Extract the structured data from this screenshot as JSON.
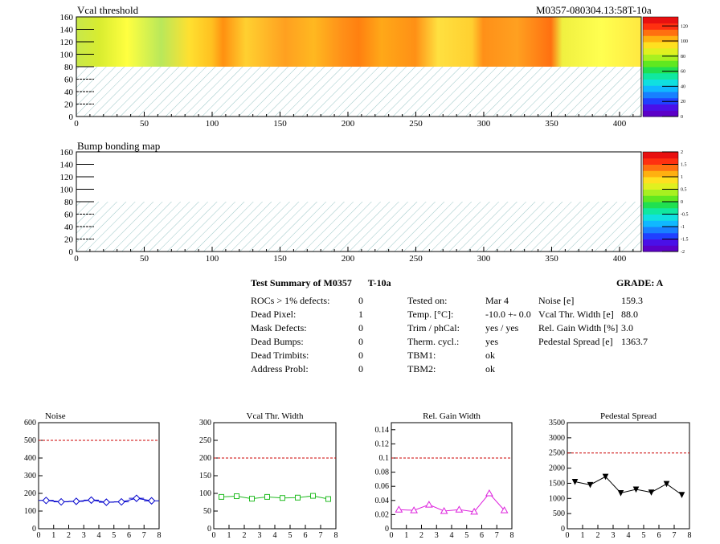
{
  "maps": [
    {
      "title": "Vcal threshold",
      "right_title": "M0357-080304.13:58T-10a",
      "x_ticks": [
        "0",
        "50",
        "100",
        "150",
        "200",
        "250",
        "300",
        "350",
        "400"
      ],
      "y_ticks": [
        "0",
        "20",
        "40",
        "60",
        "80",
        "100",
        "120",
        "140",
        "160"
      ],
      "z_ticks": [
        "0",
        "20",
        "40",
        "60",
        "80",
        "100",
        "120"
      ],
      "has_data": true
    },
    {
      "title": "Bump bonding map",
      "right_title": "",
      "x_ticks": [
        "0",
        "50",
        "100",
        "150",
        "200",
        "250",
        "300",
        "350",
        "400"
      ],
      "y_ticks": [
        "0",
        "20",
        "40",
        "60",
        "80",
        "100",
        "120",
        "140",
        "160"
      ],
      "z_ticks": [
        "-2",
        "-1.5",
        "-1",
        "-0.5",
        "0",
        "0.5",
        "1",
        "1.5",
        "2"
      ],
      "has_data": false
    }
  ],
  "summary": {
    "title": "Test Summary of M0357",
    "temp_tag": "T-10a",
    "grade_label": "GRADE:  A",
    "col1": [
      {
        "label": "ROCs > 1% defects:",
        "value": "0"
      },
      {
        "label": "Dead Pixel:",
        "value": "1"
      },
      {
        "label": "Mask Defects:",
        "value": "0"
      },
      {
        "label": "Dead Bumps:",
        "value": "0"
      },
      {
        "label": "Dead Trimbits:",
        "value": "0"
      },
      {
        "label": "Address Probl:",
        "value": "0"
      }
    ],
    "col2": [
      {
        "label": "Tested on:",
        "value": "Mar 4"
      },
      {
        "label": "Temp. [°C]:",
        "value": "-10.0 +- 0.0"
      },
      {
        "label": "Trim / phCal:",
        "value": "yes / yes"
      },
      {
        "label": "Therm. cycl.:",
        "value": "yes"
      },
      {
        "label": "TBM1:",
        "value": "ok"
      },
      {
        "label": "TBM2:",
        "value": "ok"
      }
    ],
    "col3": [
      {
        "label": "Noise [e]",
        "value": "159.3"
      },
      {
        "label": "Vcal Thr. Width [e]",
        "value": "88.0"
      },
      {
        "label": "Rel. Gain Width [%]",
        "value": "3.0"
      },
      {
        "label": "Pedestal Spread [e]",
        "value": "1363.7"
      }
    ]
  },
  "chart_data": [
    {
      "type": "line",
      "title": "Noise",
      "color": "#0000cc",
      "marker": "diamond",
      "x": [
        0.5,
        1.5,
        2.5,
        3.5,
        4.5,
        5.5,
        6.5,
        7.5
      ],
      "values": [
        160,
        152,
        155,
        162,
        150,
        152,
        172,
        158
      ],
      "errors": [
        15,
        15,
        15,
        15,
        15,
        15,
        15,
        15
      ],
      "xlim": [
        0,
        8
      ],
      "ylim": [
        0,
        600
      ],
      "threshold": 500,
      "x_ticks": [
        "0",
        "1",
        "2",
        "3",
        "4",
        "5",
        "6",
        "7",
        "8"
      ],
      "y_ticks": [
        "0",
        "100",
        "200",
        "300",
        "400",
        "500",
        "600"
      ],
      "y_tick_values": [
        0,
        100,
        200,
        300,
        400,
        500,
        600
      ]
    },
    {
      "type": "line",
      "title": "Vcal Thr. Width",
      "color": "#22bb22",
      "marker": "square",
      "x": [
        0.5,
        1.5,
        2.5,
        3.5,
        4.5,
        5.5,
        6.5,
        7.5
      ],
      "values": [
        90,
        92,
        85,
        90,
        87,
        88,
        93,
        84
      ],
      "xlim": [
        0,
        8
      ],
      "ylim": [
        0,
        300
      ],
      "threshold": 200,
      "x_ticks": [
        "0",
        "1",
        "2",
        "3",
        "4",
        "5",
        "6",
        "7",
        "8"
      ],
      "y_ticks": [
        "0",
        "50",
        "100",
        "150",
        "200",
        "250",
        "300"
      ],
      "y_tick_values": [
        0,
        50,
        100,
        150,
        200,
        250,
        300
      ]
    },
    {
      "type": "line",
      "title": "Rel. Gain Width",
      "color": "#dd22dd",
      "marker": "triangle",
      "x": [
        0.5,
        1.5,
        2.5,
        3.5,
        4.5,
        5.5,
        6.5,
        7.5
      ],
      "values": [
        0.027,
        0.026,
        0.034,
        0.025,
        0.027,
        0.024,
        0.05,
        0.026
      ],
      "xlim": [
        0,
        8
      ],
      "ylim": [
        0,
        0.15
      ],
      "threshold": 0.1,
      "x_ticks": [
        "0",
        "1",
        "2",
        "3",
        "4",
        "5",
        "6",
        "7",
        "8"
      ],
      "y_ticks": [
        "0",
        "0.02",
        "0.04",
        "0.06",
        "0.08",
        "0.1",
        "0.12",
        "0.14"
      ],
      "y_tick_values": [
        0,
        0.02,
        0.04,
        0.06,
        0.08,
        0.1,
        0.12,
        0.14
      ]
    },
    {
      "type": "line",
      "title": "Pedestal Spread",
      "color": "#000000",
      "marker": "triangle-down",
      "x": [
        0.5,
        1.5,
        2.5,
        3.5,
        4.5,
        5.5,
        6.5,
        7.5
      ],
      "values": [
        1550,
        1450,
        1720,
        1180,
        1300,
        1200,
        1480,
        1120
      ],
      "xlim": [
        0,
        8
      ],
      "ylim": [
        0,
        3500
      ],
      "threshold": 2500,
      "x_ticks": [
        "0",
        "1",
        "2",
        "3",
        "4",
        "5",
        "6",
        "7",
        "8"
      ],
      "y_ticks": [
        "0",
        "500",
        "1000",
        "1500",
        "2000",
        "2500",
        "3000",
        "3500"
      ],
      "y_tick_values": [
        0,
        500,
        1000,
        1500,
        2000,
        2500,
        3000,
        3500
      ]
    }
  ]
}
